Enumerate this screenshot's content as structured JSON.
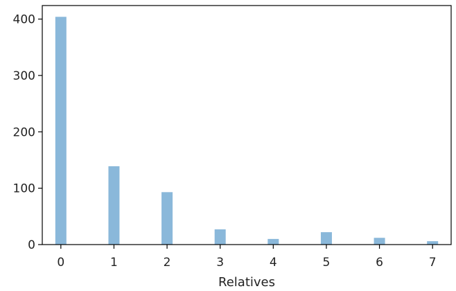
{
  "chart_data": {
    "type": "bar",
    "title": "",
    "xlabel": "Relatives",
    "ylabel": "",
    "x": [
      0,
      1,
      2,
      3,
      4,
      5,
      6,
      7
    ],
    "values": [
      404,
      139,
      93,
      27,
      10,
      22,
      12,
      6
    ],
    "xlim": [
      -0.35,
      7.35
    ],
    "ylim": [
      0,
      424
    ],
    "xticks": [
      "0",
      "1",
      "2",
      "3",
      "4",
      "5",
      "6",
      "7"
    ],
    "yticks": [
      "0",
      "100",
      "200",
      "300",
      "400"
    ],
    "bar_color": "#8ab8da",
    "grid": false,
    "legend": "none"
  }
}
